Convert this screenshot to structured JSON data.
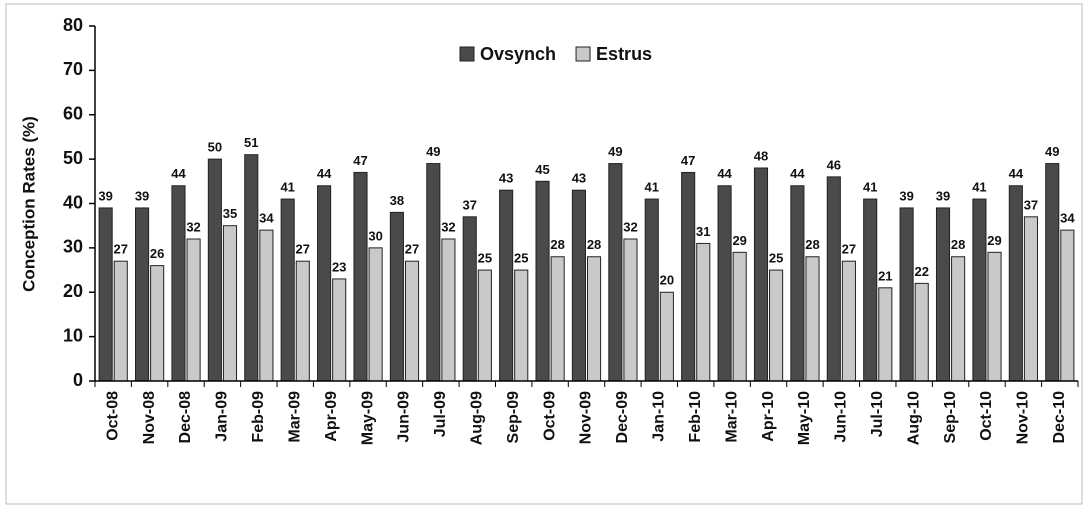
{
  "chart_data": {
    "type": "bar",
    "ylabel": "Conception Rates (%)",
    "categories": [
      "Oct-08",
      "Nov-08",
      "Dec-08",
      "Jan-09",
      "Feb-09",
      "Mar-09",
      "Apr-09",
      "May-09",
      "Jun-09",
      "Jul-09",
      "Aug-09",
      "Sep-09",
      "Oct-09",
      "Nov-09",
      "Dec-09",
      "Jan-10",
      "Feb-10",
      "Mar-10",
      "Apr-10",
      "May-10",
      "Jun-10",
      "Jul-10",
      "Aug-10",
      "Sep-10",
      "Oct-10",
      "Nov-10",
      "Dec-10"
    ],
    "series": [
      {
        "name": "Ovsynch",
        "color": "#4a4a4a",
        "values": [
          39,
          39,
          44,
          50,
          51,
          41,
          44,
          47,
          38,
          49,
          37,
          43,
          45,
          43,
          49,
          41,
          47,
          44,
          48,
          44,
          46,
          41,
          39,
          39,
          41,
          44,
          49
        ]
      },
      {
        "name": "Estrus",
        "color": "#c9c9c9",
        "values": [
          27,
          26,
          32,
          35,
          34,
          27,
          23,
          30,
          27,
          32,
          25,
          25,
          28,
          28,
          32,
          20,
          31,
          29,
          25,
          28,
          27,
          21,
          22,
          28,
          29,
          37,
          34
        ]
      }
    ],
    "ylim": [
      0,
      80
    ],
    "yticks": [
      0,
      10,
      20,
      30,
      40,
      50,
      60,
      70,
      80
    ],
    "grid": false,
    "legend": "top"
  }
}
